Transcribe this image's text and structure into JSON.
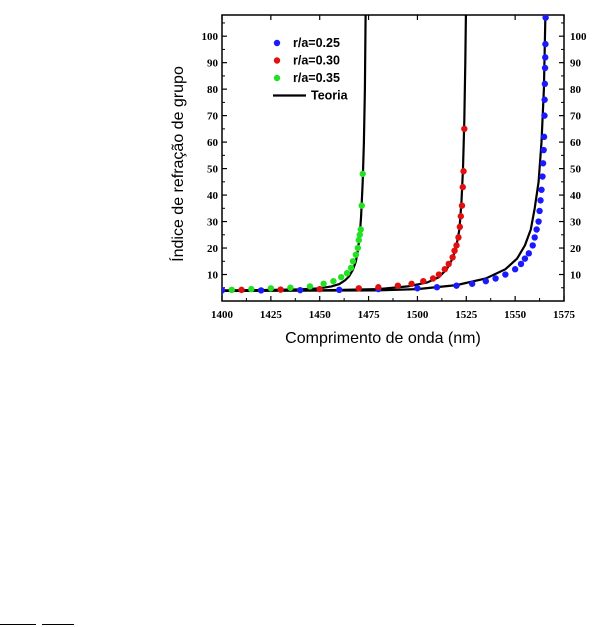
{
  "chart_data": {
    "type": "scatter",
    "xlabel": "Comprimento de onda (nm)",
    "ylabel": "Índice de refração de grupo",
    "xlim": [
      1400,
      1575
    ],
    "ylim": [
      0,
      108
    ],
    "x_ticks": [
      1400,
      1425,
      1450,
      1475,
      1500,
      1525,
      1550,
      1575
    ],
    "y_ticks": [
      10,
      20,
      30,
      40,
      50,
      60,
      70,
      80,
      90,
      100
    ],
    "right_y_ticks": true,
    "legend_position": "top-left",
    "series": [
      {
        "name": "r/a=0.25",
        "color": "#1a1aff",
        "points": [
          [
            1400,
            4.0
          ],
          [
            1420,
            4.0
          ],
          [
            1440,
            4.1
          ],
          [
            1460,
            4.2
          ],
          [
            1480,
            4.5
          ],
          [
            1500,
            4.8
          ],
          [
            1510,
            5.2
          ],
          [
            1520,
            5.8
          ],
          [
            1528,
            6.5
          ],
          [
            1535,
            7.5
          ],
          [
            1540,
            8.5
          ],
          [
            1545,
            10
          ],
          [
            1550,
            12
          ],
          [
            1553,
            14
          ],
          [
            1555,
            16
          ],
          [
            1557,
            18
          ],
          [
            1559,
            21
          ],
          [
            1560,
            24
          ],
          [
            1561,
            27
          ],
          [
            1562,
            30
          ],
          [
            1562.5,
            34
          ],
          [
            1563,
            38
          ],
          [
            1563.5,
            42
          ],
          [
            1564,
            47
          ],
          [
            1564.3,
            52
          ],
          [
            1564.6,
            57
          ],
          [
            1564.8,
            62
          ],
          [
            1565,
            70
          ],
          [
            1565.1,
            76
          ],
          [
            1565.2,
            82
          ],
          [
            1565.3,
            88
          ],
          [
            1565.4,
            92
          ],
          [
            1565.5,
            97
          ],
          [
            1565.6,
            107
          ]
        ]
      },
      {
        "name": "r/a=0.30",
        "color": "#e01010",
        "points": [
          [
            1410,
            4.2
          ],
          [
            1430,
            4.3
          ],
          [
            1450,
            4.5
          ],
          [
            1470,
            4.8
          ],
          [
            1480,
            5.2
          ],
          [
            1490,
            5.8
          ],
          [
            1497,
            6.5
          ],
          [
            1503,
            7.5
          ],
          [
            1508,
            8.5
          ],
          [
            1511,
            10
          ],
          [
            1514,
            12
          ],
          [
            1516,
            14
          ],
          [
            1518,
            16.5
          ],
          [
            1519,
            19
          ],
          [
            1520,
            21
          ],
          [
            1521,
            24
          ],
          [
            1521.7,
            28
          ],
          [
            1522.2,
            32
          ],
          [
            1522.8,
            36
          ],
          [
            1523.2,
            43
          ],
          [
            1523.6,
            49
          ],
          [
            1524,
            65
          ]
        ]
      },
      {
        "name": "r/a=0.35",
        "color": "#22e022",
        "points": [
          [
            1405,
            4.2
          ],
          [
            1415,
            4.5
          ],
          [
            1425,
            4.8
          ],
          [
            1435,
            5.0
          ],
          [
            1445,
            5.5
          ],
          [
            1452,
            6.5
          ],
          [
            1457,
            7.5
          ],
          [
            1461,
            9.0
          ],
          [
            1464,
            10.5
          ],
          [
            1466,
            12.5
          ],
          [
            1467,
            15
          ],
          [
            1468.5,
            17.5
          ],
          [
            1469.5,
            20
          ],
          [
            1470,
            23
          ],
          [
            1470.5,
            25
          ],
          [
            1471,
            27
          ],
          [
            1471.5,
            36
          ],
          [
            1472,
            48
          ]
        ]
      },
      {
        "name": "Teoria",
        "color": "#000000",
        "style": "line",
        "curves": [
          [
            [
              1400,
              4.0
            ],
            [
              1420,
              4.1
            ],
            [
              1440,
              4.4
            ],
            [
              1450,
              4.8
            ],
            [
              1456,
              5.5
            ],
            [
              1460,
              6.4
            ],
            [
              1463,
              7.8
            ],
            [
              1465,
              9.3
            ],
            [
              1467,
              11.8
            ],
            [
              1468.5,
              15
            ],
            [
              1469.5,
              19
            ],
            [
              1470.5,
              25
            ],
            [
              1471.2,
              32
            ],
            [
              1472,
              45
            ],
            [
              1472.6,
              60
            ],
            [
              1473.1,
              80
            ],
            [
              1473.5,
              108
            ]
          ],
          [
            [
              1400,
              3.9
            ],
            [
              1450,
              4.0
            ],
            [
              1480,
              4.5
            ],
            [
              1495,
              5.5
            ],
            [
              1505,
              7
            ],
            [
              1511,
              9
            ],
            [
              1515,
              12
            ],
            [
              1518,
              16
            ],
            [
              1520,
              21
            ],
            [
              1521.5,
              27
            ],
            [
              1522.5,
              37
            ],
            [
              1523.3,
              50
            ],
            [
              1524,
              68
            ],
            [
              1524.5,
              90
            ],
            [
              1524.8,
              108
            ]
          ],
          [
            [
              1400,
              3.8
            ],
            [
              1480,
              4.0
            ],
            [
              1500,
              4.5
            ],
            [
              1520,
              6
            ],
            [
              1535,
              8.5
            ],
            [
              1545,
              12
            ],
            [
              1551,
              16
            ],
            [
              1555,
              21
            ],
            [
              1558,
              27
            ],
            [
              1560,
              35
            ],
            [
              1562,
              45
            ],
            [
              1563.5,
              60
            ],
            [
              1564.7,
              80
            ],
            [
              1565.5,
              108
            ]
          ]
        ]
      }
    ]
  }
}
